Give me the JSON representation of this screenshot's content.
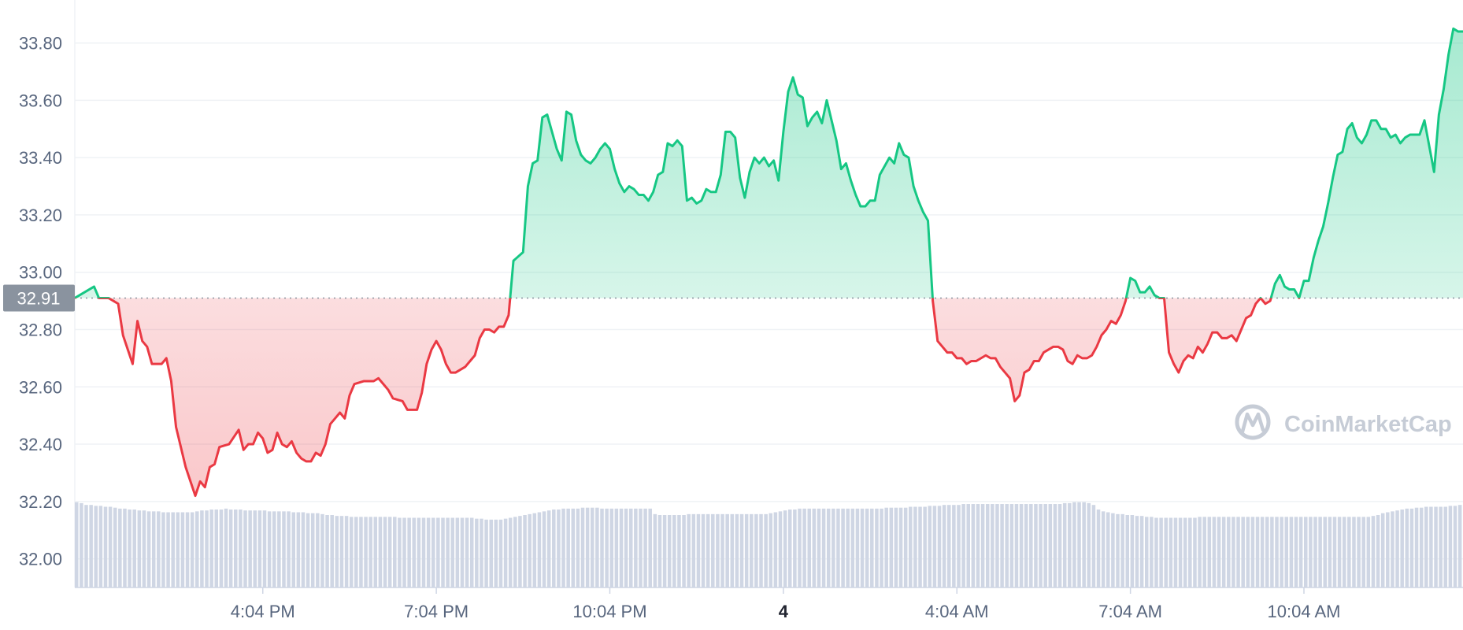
{
  "chart_data": {
    "type": "line",
    "title": "",
    "xlabel": "",
    "ylabel": "",
    "ylim": [
      31.9,
      33.95
    ],
    "y_ticks": [
      "32.00",
      "32.20",
      "32.40",
      "32.60",
      "32.80",
      "33.00",
      "33.20",
      "33.40",
      "33.60",
      "33.80"
    ],
    "y_tick_values": [
      32.0,
      32.2,
      32.4,
      32.6,
      32.8,
      33.0,
      33.2,
      33.4,
      33.6,
      33.8
    ],
    "x_ticks": [
      {
        "label": "4:04 PM",
        "bold": false
      },
      {
        "label": "7:04 PM",
        "bold": false
      },
      {
        "label": "10:04 PM",
        "bold": false
      },
      {
        "label": "4",
        "bold": true
      },
      {
        "label": "4:04 AM",
        "bold": false
      },
      {
        "label": "7:04 AM",
        "bold": false
      },
      {
        "label": "10:04 AM",
        "bold": false
      }
    ],
    "x_tick_index": [
      39,
      75,
      111,
      147,
      183,
      219,
      255
    ],
    "x_count": 289,
    "reference_price": 32.91,
    "reference_label": "32.91",
    "colors": {
      "up": "#16c784",
      "down": "#ea3943",
      "volume": "#cfd6e4",
      "badge": "#8a939f"
    },
    "grid": true,
    "legend": "none",
    "watermark": "CoinMarketCap",
    "keyframes": [
      [
        0,
        32.91
      ],
      [
        2,
        32.93
      ],
      [
        4,
        32.95
      ],
      [
        5,
        32.91
      ],
      [
        7,
        32.91
      ],
      [
        9,
        32.89
      ],
      [
        10,
        32.78
      ],
      [
        12,
        32.68
      ],
      [
        13,
        32.83
      ],
      [
        14,
        32.76
      ],
      [
        15,
        32.74
      ],
      [
        16,
        32.68
      ],
      [
        18,
        32.68
      ],
      [
        19,
        32.7
      ],
      [
        20,
        32.62
      ],
      [
        21,
        32.46
      ],
      [
        23,
        32.32
      ],
      [
        25,
        32.22
      ],
      [
        26,
        32.27
      ],
      [
        27,
        32.25
      ],
      [
        28,
        32.32
      ],
      [
        29,
        32.33
      ],
      [
        30,
        32.39
      ],
      [
        32,
        32.4
      ],
      [
        34,
        32.45
      ],
      [
        35,
        32.38
      ],
      [
        36,
        32.4
      ],
      [
        37,
        32.4
      ],
      [
        38,
        32.44
      ],
      [
        39,
        32.42
      ],
      [
        40,
        32.37
      ],
      [
        41,
        32.38
      ],
      [
        42,
        32.44
      ],
      [
        43,
        32.4
      ],
      [
        44,
        32.39
      ],
      [
        45,
        32.41
      ],
      [
        46,
        32.37
      ],
      [
        47,
        32.35
      ],
      [
        48,
        32.34
      ],
      [
        49,
        32.34
      ],
      [
        50,
        32.37
      ],
      [
        51,
        32.36
      ],
      [
        52,
        32.4
      ],
      [
        53,
        32.47
      ],
      [
        54,
        32.49
      ],
      [
        55,
        32.51
      ],
      [
        56,
        32.49
      ],
      [
        57,
        32.57
      ],
      [
        58,
        32.61
      ],
      [
        60,
        32.62
      ],
      [
        62,
        32.62
      ],
      [
        63,
        32.63
      ],
      [
        64,
        32.61
      ],
      [
        65,
        32.59
      ],
      [
        66,
        32.56
      ],
      [
        68,
        32.55
      ],
      [
        69,
        32.52
      ],
      [
        71,
        32.52
      ],
      [
        72,
        32.58
      ],
      [
        73,
        32.68
      ],
      [
        74,
        32.73
      ],
      [
        75,
        32.76
      ],
      [
        76,
        32.73
      ],
      [
        77,
        32.68
      ],
      [
        78,
        32.65
      ],
      [
        79,
        32.65
      ],
      [
        80,
        32.66
      ],
      [
        81,
        32.67
      ],
      [
        82,
        32.69
      ],
      [
        83,
        32.71
      ],
      [
        84,
        32.77
      ],
      [
        85,
        32.8
      ],
      [
        86,
        32.8
      ],
      [
        87,
        32.79
      ],
      [
        88,
        32.81
      ],
      [
        89,
        32.81
      ],
      [
        90,
        32.85
      ],
      [
        91,
        33.04
      ],
      [
        93,
        33.07
      ],
      [
        94,
        33.3
      ],
      [
        95,
        33.38
      ],
      [
        96,
        33.39
      ],
      [
        97,
        33.54
      ],
      [
        98,
        33.55
      ],
      [
        99,
        33.49
      ],
      [
        100,
        33.43
      ],
      [
        101,
        33.39
      ],
      [
        102,
        33.56
      ],
      [
        103,
        33.55
      ],
      [
        104,
        33.46
      ],
      [
        105,
        33.41
      ],
      [
        106,
        33.39
      ],
      [
        107,
        33.38
      ],
      [
        108,
        33.4
      ],
      [
        109,
        33.43
      ],
      [
        110,
        33.45
      ],
      [
        111,
        33.43
      ],
      [
        112,
        33.36
      ],
      [
        113,
        33.31
      ],
      [
        114,
        33.28
      ],
      [
        115,
        33.3
      ],
      [
        116,
        33.29
      ],
      [
        117,
        33.27
      ],
      [
        118,
        33.27
      ],
      [
        119,
        33.25
      ],
      [
        120,
        33.28
      ],
      [
        121,
        33.34
      ],
      [
        122,
        33.35
      ],
      [
        123,
        33.45
      ],
      [
        124,
        33.44
      ],
      [
        125,
        33.46
      ],
      [
        126,
        33.44
      ],
      [
        127,
        33.25
      ],
      [
        128,
        33.26
      ],
      [
        129,
        33.24
      ],
      [
        130,
        33.25
      ],
      [
        131,
        33.29
      ],
      [
        132,
        33.28
      ],
      [
        133,
        33.28
      ],
      [
        134,
        33.34
      ],
      [
        135,
        33.49
      ],
      [
        136,
        33.49
      ],
      [
        137,
        33.47
      ],
      [
        138,
        33.33
      ],
      [
        139,
        33.26
      ],
      [
        140,
        33.35
      ],
      [
        141,
        33.4
      ],
      [
        142,
        33.38
      ],
      [
        143,
        33.4
      ],
      [
        144,
        33.37
      ],
      [
        145,
        33.39
      ],
      [
        146,
        33.32
      ],
      [
        147,
        33.49
      ],
      [
        148,
        33.63
      ],
      [
        149,
        33.68
      ],
      [
        150,
        33.62
      ],
      [
        151,
        33.61
      ],
      [
        152,
        33.51
      ],
      [
        153,
        33.54
      ],
      [
        154,
        33.56
      ],
      [
        155,
        33.52
      ],
      [
        156,
        33.6
      ],
      [
        157,
        33.53
      ],
      [
        158,
        33.46
      ],
      [
        159,
        33.36
      ],
      [
        160,
        33.38
      ],
      [
        161,
        33.32
      ],
      [
        162,
        33.27
      ],
      [
        163,
        33.23
      ],
      [
        164,
        33.23
      ],
      [
        165,
        33.25
      ],
      [
        166,
        33.25
      ],
      [
        167,
        33.34
      ],
      [
        168,
        33.37
      ],
      [
        169,
        33.4
      ],
      [
        170,
        33.38
      ],
      [
        171,
        33.45
      ],
      [
        172,
        33.41
      ],
      [
        173,
        33.4
      ],
      [
        174,
        33.3
      ],
      [
        175,
        33.25
      ],
      [
        176,
        33.21
      ],
      [
        177,
        33.18
      ],
      [
        178,
        32.9
      ],
      [
        179,
        32.76
      ],
      [
        180,
        32.74
      ],
      [
        181,
        32.72
      ],
      [
        182,
        32.72
      ],
      [
        183,
        32.7
      ],
      [
        184,
        32.7
      ],
      [
        185,
        32.68
      ],
      [
        186,
        32.69
      ],
      [
        187,
        32.69
      ],
      [
        188,
        32.7
      ],
      [
        189,
        32.71
      ],
      [
        190,
        32.7
      ],
      [
        191,
        32.7
      ],
      [
        192,
        32.67
      ],
      [
        193,
        32.65
      ],
      [
        194,
        32.63
      ],
      [
        195,
        32.55
      ],
      [
        196,
        32.57
      ],
      [
        197,
        32.65
      ],
      [
        198,
        32.66
      ],
      [
        199,
        32.69
      ],
      [
        200,
        32.69
      ],
      [
        201,
        32.72
      ],
      [
        202,
        32.73
      ],
      [
        203,
        32.74
      ],
      [
        204,
        32.74
      ],
      [
        205,
        32.73
      ],
      [
        206,
        32.69
      ],
      [
        207,
        32.68
      ],
      [
        208,
        32.71
      ],
      [
        209,
        32.7
      ],
      [
        210,
        32.7
      ],
      [
        211,
        32.71
      ],
      [
        212,
        32.74
      ],
      [
        213,
        32.78
      ],
      [
        214,
        32.8
      ],
      [
        215,
        32.83
      ],
      [
        216,
        32.82
      ],
      [
        217,
        32.85
      ],
      [
        218,
        32.9
      ],
      [
        219,
        32.98
      ],
      [
        220,
        32.97
      ],
      [
        221,
        32.93
      ],
      [
        222,
        32.93
      ],
      [
        223,
        32.95
      ],
      [
        224,
        32.92
      ],
      [
        225,
        32.91
      ],
      [
        226,
        32.91
      ],
      [
        227,
        32.72
      ],
      [
        228,
        32.68
      ],
      [
        229,
        32.65
      ],
      [
        230,
        32.69
      ],
      [
        231,
        32.71
      ],
      [
        232,
        32.7
      ],
      [
        233,
        32.74
      ],
      [
        234,
        32.72
      ],
      [
        235,
        32.75
      ],
      [
        236,
        32.79
      ],
      [
        237,
        32.79
      ],
      [
        238,
        32.77
      ],
      [
        239,
        32.77
      ],
      [
        240,
        32.78
      ],
      [
        241,
        32.76
      ],
      [
        242,
        32.8
      ],
      [
        243,
        32.84
      ],
      [
        244,
        32.85
      ],
      [
        245,
        32.89
      ],
      [
        246,
        32.91
      ],
      [
        247,
        32.89
      ],
      [
        248,
        32.9
      ],
      [
        249,
        32.96
      ],
      [
        250,
        32.99
      ],
      [
        251,
        32.95
      ],
      [
        252,
        32.94
      ],
      [
        253,
        32.94
      ],
      [
        254,
        32.91
      ],
      [
        255,
        32.97
      ],
      [
        256,
        32.97
      ],
      [
        257,
        33.05
      ],
      [
        258,
        33.11
      ],
      [
        259,
        33.16
      ],
      [
        260,
        33.24
      ],
      [
        261,
        33.33
      ],
      [
        262,
        33.41
      ],
      [
        263,
        33.42
      ],
      [
        264,
        33.5
      ],
      [
        265,
        33.52
      ],
      [
        266,
        33.47
      ],
      [
        267,
        33.45
      ],
      [
        268,
        33.48
      ],
      [
        269,
        33.53
      ],
      [
        270,
        33.53
      ],
      [
        271,
        33.5
      ],
      [
        272,
        33.5
      ],
      [
        273,
        33.47
      ],
      [
        274,
        33.48
      ],
      [
        275,
        33.45
      ],
      [
        276,
        33.47
      ],
      [
        277,
        33.48
      ],
      [
        278,
        33.48
      ],
      [
        279,
        33.48
      ],
      [
        280,
        33.53
      ],
      [
        281,
        33.44
      ],
      [
        282,
        33.35
      ],
      [
        283,
        33.55
      ],
      [
        284,
        33.64
      ],
      [
        285,
        33.76
      ],
      [
        286,
        33.85
      ],
      [
        287,
        33.84
      ]
    ],
    "volume_values": [
      0.93,
      0.92,
      0.9,
      0.9,
      0.89,
      0.89,
      0.88,
      0.88,
      0.87,
      0.86,
      0.86,
      0.85,
      0.85,
      0.84,
      0.84,
      0.83,
      0.83,
      0.83,
      0.82,
      0.82,
      0.82,
      0.82,
      0.82,
      0.82,
      0.82,
      0.83,
      0.84,
      0.84,
      0.85,
      0.85,
      0.85,
      0.86,
      0.85,
      0.85,
      0.85,
      0.84,
      0.84,
      0.84,
      0.84,
      0.84,
      0.83,
      0.83,
      0.83,
      0.83,
      0.83,
      0.82,
      0.82,
      0.82,
      0.81,
      0.81,
      0.81,
      0.8,
      0.79,
      0.79,
      0.78,
      0.78,
      0.78,
      0.77,
      0.77,
      0.77,
      0.77,
      0.77,
      0.77,
      0.77,
      0.77,
      0.77,
      0.77,
      0.76,
      0.76,
      0.76,
      0.76,
      0.76,
      0.76,
      0.76,
      0.76,
      0.76,
      0.76,
      0.76,
      0.76,
      0.76,
      0.76,
      0.76,
      0.76,
      0.75,
      0.75,
      0.74,
      0.74,
      0.74,
      0.74,
      0.75,
      0.76,
      0.77,
      0.78,
      0.79,
      0.8,
      0.81,
      0.82,
      0.83,
      0.84,
      0.85,
      0.85,
      0.86,
      0.86,
      0.86,
      0.86,
      0.87,
      0.87,
      0.87,
      0.87,
      0.86,
      0.86,
      0.86,
      0.86,
      0.86,
      0.86,
      0.86,
      0.86,
      0.86,
      0.86,
      0.86,
      0.8,
      0.79,
      0.79,
      0.79,
      0.79,
      0.79,
      0.79,
      0.8,
      0.8,
      0.8,
      0.8,
      0.8,
      0.8,
      0.8,
      0.8,
      0.8,
      0.8,
      0.8,
      0.8,
      0.8,
      0.8,
      0.8,
      0.8,
      0.8,
      0.81,
      0.82,
      0.83,
      0.84,
      0.85,
      0.85,
      0.86,
      0.86,
      0.86,
      0.86,
      0.86,
      0.86,
      0.86,
      0.86,
      0.86,
      0.86,
      0.86,
      0.86,
      0.86,
      0.86,
      0.86,
      0.86,
      0.86,
      0.86,
      0.87,
      0.87,
      0.87,
      0.87,
      0.87,
      0.88,
      0.88,
      0.88,
      0.88,
      0.89,
      0.89,
      0.89,
      0.9,
      0.9,
      0.9,
      0.9,
      0.91,
      0.91,
      0.91,
      0.91,
      0.91,
      0.91,
      0.91,
      0.91,
      0.91,
      0.91,
      0.91,
      0.91,
      0.91,
      0.91,
      0.91,
      0.91,
      0.91,
      0.91,
      0.91,
      0.91,
      0.91,
      0.92,
      0.92,
      0.93,
      0.93,
      0.93,
      0.92,
      0.9,
      0.85,
      0.83,
      0.82,
      0.81,
      0.8,
      0.8,
      0.79,
      0.79,
      0.78,
      0.78,
      0.77,
      0.77,
      0.76,
      0.76,
      0.76,
      0.76,
      0.76,
      0.76,
      0.76,
      0.76,
      0.76,
      0.77,
      0.77,
      0.77,
      0.77,
      0.77,
      0.77,
      0.77,
      0.77,
      0.77,
      0.77,
      0.77,
      0.77,
      0.77,
      0.77,
      0.77,
      0.77,
      0.77,
      0.77,
      0.77,
      0.77,
      0.77,
      0.77,
      0.77,
      0.77,
      0.77,
      0.77,
      0.77,
      0.77,
      0.77,
      0.77,
      0.77,
      0.77,
      0.77,
      0.77,
      0.77,
      0.77,
      0.78,
      0.79,
      0.81,
      0.82,
      0.83,
      0.84,
      0.85,
      0.86,
      0.86,
      0.87,
      0.87,
      0.88,
      0.88,
      0.88,
      0.88,
      0.88,
      0.89,
      0.89,
      0.9,
      0.9,
      0.91,
      0.92,
      0.93,
      0.94,
      0.95,
      0.96,
      0.97,
      0.98,
      1.0,
      1.0
    ]
  }
}
